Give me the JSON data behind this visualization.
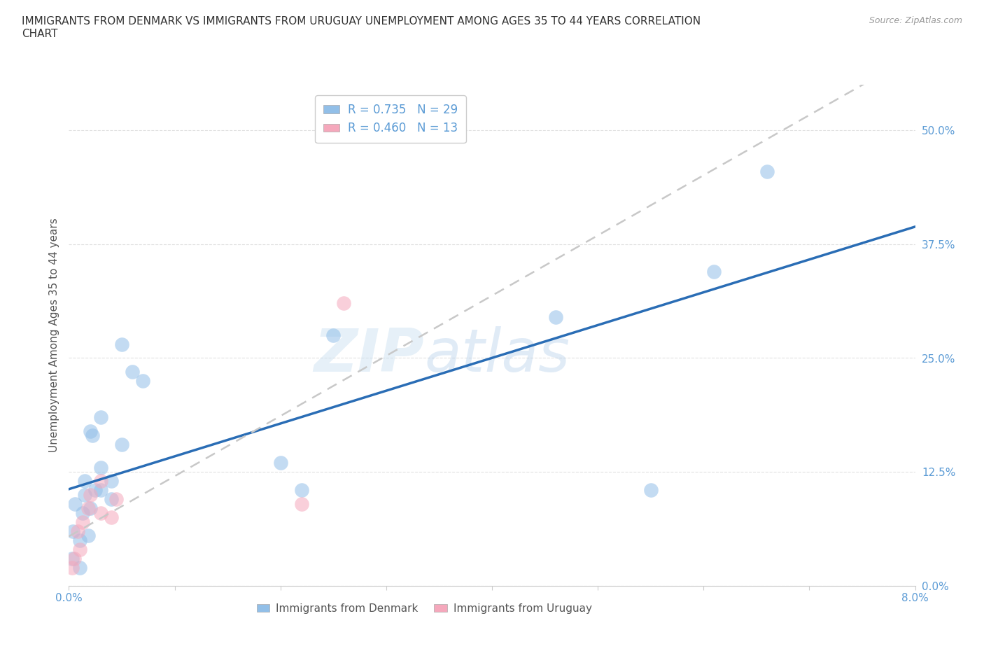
{
  "title": "IMMIGRANTS FROM DENMARK VS IMMIGRANTS FROM URUGUAY UNEMPLOYMENT AMONG AGES 35 TO 44 YEARS CORRELATION\nCHART",
  "source": "Source: ZipAtlas.com",
  "ylabel": "Unemployment Among Ages 35 to 44 years",
  "xlim": [
    0.0,
    0.08
  ],
  "ylim": [
    0.0,
    0.55
  ],
  "ytick_vals": [
    0.0,
    0.125,
    0.25,
    0.375,
    0.5
  ],
  "xticks": [
    0.0,
    0.01,
    0.02,
    0.03,
    0.04,
    0.05,
    0.06,
    0.07,
    0.08
  ],
  "xtick_labels": [
    "0.0%",
    "",
    "",
    "",
    "",
    "",
    "",
    "",
    "8.0%"
  ],
  "denmark_color": "#92bfe8",
  "uruguay_color": "#f5a8bc",
  "denmark_line_color": "#2a6db5",
  "uruguay_line_color": "#c8c8c8",
  "tick_color": "#5b9bd5",
  "R_denmark": 0.735,
  "N_denmark": 29,
  "R_uruguay": 0.46,
  "N_uruguay": 13,
  "denmark_x": [
    0.0003,
    0.0004,
    0.0006,
    0.001,
    0.001,
    0.0013,
    0.0015,
    0.0015,
    0.0018,
    0.002,
    0.002,
    0.0022,
    0.0025,
    0.003,
    0.003,
    0.003,
    0.004,
    0.004,
    0.005,
    0.005,
    0.006,
    0.007,
    0.02,
    0.022,
    0.025,
    0.046,
    0.055,
    0.061,
    0.066
  ],
  "denmark_y": [
    0.03,
    0.06,
    0.09,
    0.02,
    0.05,
    0.08,
    0.1,
    0.115,
    0.055,
    0.085,
    0.17,
    0.165,
    0.105,
    0.105,
    0.13,
    0.185,
    0.095,
    0.115,
    0.155,
    0.265,
    0.235,
    0.225,
    0.135,
    0.105,
    0.275,
    0.295,
    0.105,
    0.345,
    0.455
  ],
  "uruguay_x": [
    0.0003,
    0.0005,
    0.0008,
    0.001,
    0.0013,
    0.0018,
    0.002,
    0.003,
    0.003,
    0.004,
    0.0045,
    0.022,
    0.026
  ],
  "uruguay_y": [
    0.02,
    0.03,
    0.06,
    0.04,
    0.07,
    0.085,
    0.1,
    0.08,
    0.115,
    0.075,
    0.095,
    0.09,
    0.31
  ],
  "watermark_text": "ZIP",
  "watermark_text2": "atlas",
  "background_color": "#ffffff",
  "grid_color": "#e0e0e0"
}
